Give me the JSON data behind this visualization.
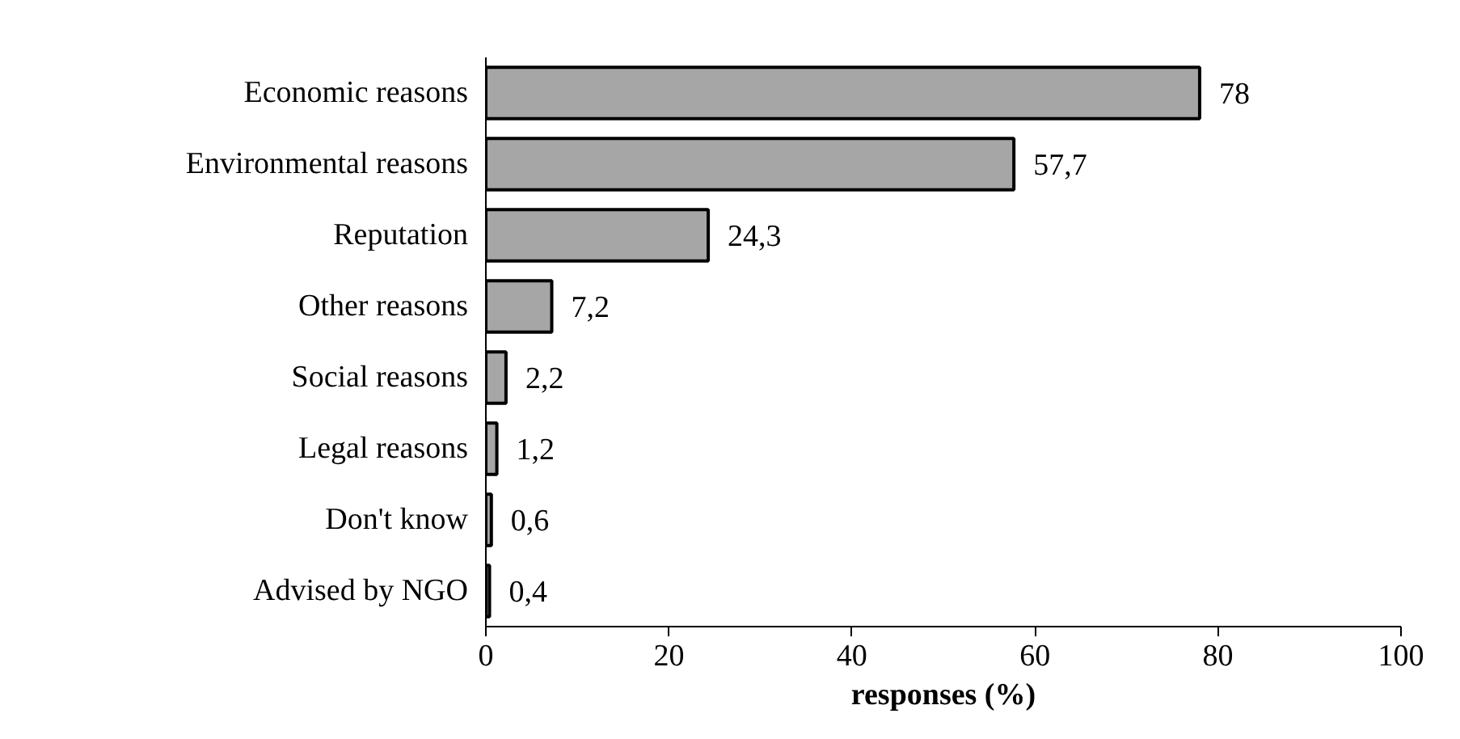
{
  "chart_data": {
    "type": "bar",
    "orientation": "horizontal",
    "xlabel": "responses (%)",
    "categories": [
      "Economic reasons",
      "Environmental reasons",
      "Reputation",
      "Other reasons",
      "Social reasons",
      "Legal reasons",
      "Don't know",
      "Advised by NGO"
    ],
    "values": [
      78,
      57.7,
      24.3,
      7.2,
      2.2,
      1.2,
      0.6,
      0.4
    ],
    "value_labels": [
      "78",
      "57,7",
      "24,3",
      "7,2",
      "2,2",
      "1,2",
      "0,6",
      "0,4"
    ],
    "color": "#a6a6a6",
    "xlim": [
      0,
      100
    ],
    "xticks": [
      0,
      20,
      40,
      60,
      80,
      100
    ],
    "grid": false
  }
}
